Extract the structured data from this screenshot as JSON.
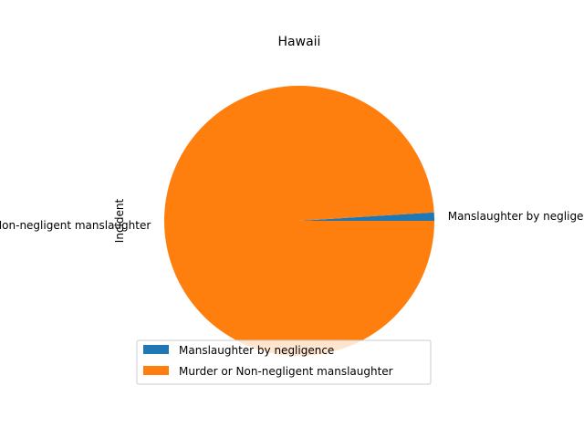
{
  "chart_data": {
    "type": "pie",
    "title": "Hawaii",
    "ylabel": "Incident",
    "categories": [
      "Manslaughter by negligence",
      "Murder or Non-negligent manslaughter"
    ],
    "values": [
      1,
      99
    ],
    "colors": [
      "#1f77b4",
      "#ff7f0e"
    ],
    "legend": {
      "placement": "bottom-center",
      "entries": [
        "Manslaughter by negligence",
        "Murder or Non-negligent manslaughter"
      ]
    },
    "grid": false
  }
}
